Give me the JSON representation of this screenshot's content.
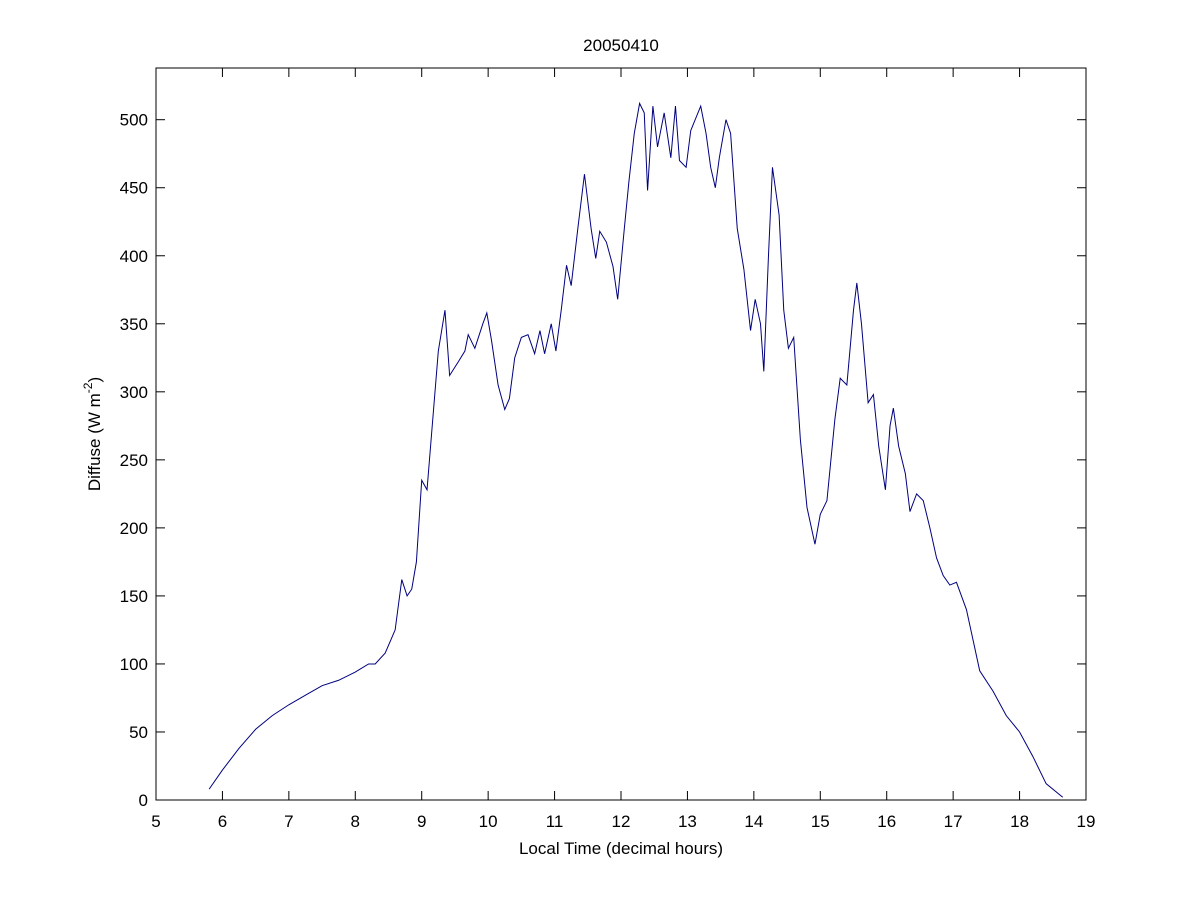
{
  "chart_data": {
    "type": "line",
    "title": "20050410",
    "xlabel": "Local Time (decimal hours)",
    "ylabel": {
      "text": "Diffuse (W m",
      "superscript": "-2",
      "suffix": ")"
    },
    "xlim": [
      5,
      19
    ],
    "xticks": [
      5,
      6,
      7,
      8,
      9,
      10,
      11,
      12,
      13,
      14,
      15,
      16,
      17,
      18,
      19
    ],
    "ylim": [
      0,
      538
    ],
    "yticks": [
      0,
      50,
      100,
      150,
      200,
      250,
      300,
      350,
      400,
      450,
      500
    ],
    "grid": false,
    "series": [
      {
        "name": "Diffuse",
        "color": "#00007f",
        "x": [
          5.8,
          6.0,
          6.25,
          6.5,
          6.75,
          7.0,
          7.25,
          7.5,
          7.75,
          8.0,
          8.2,
          8.3,
          8.45,
          8.6,
          8.7,
          8.78,
          8.85,
          8.92,
          9.0,
          9.08,
          9.15,
          9.25,
          9.35,
          9.42,
          9.55,
          9.65,
          9.7,
          9.8,
          9.92,
          9.98,
          10.05,
          10.15,
          10.25,
          10.32,
          10.4,
          10.5,
          10.6,
          10.7,
          10.78,
          10.85,
          10.95,
          11.02,
          11.1,
          11.18,
          11.25,
          11.35,
          11.45,
          11.55,
          11.62,
          11.68,
          11.78,
          11.88,
          11.95,
          12.05,
          12.12,
          12.2,
          12.28,
          12.35,
          12.4,
          12.48,
          12.55,
          12.65,
          12.75,
          12.82,
          12.88,
          12.98,
          13.05,
          13.2,
          13.28,
          13.35,
          13.42,
          13.48,
          13.58,
          13.65,
          13.75,
          13.85,
          13.95,
          14.02,
          14.1,
          14.15,
          14.22,
          14.28,
          14.38,
          14.45,
          14.52,
          14.6,
          14.7,
          14.8,
          14.92,
          15.0,
          15.1,
          15.22,
          15.3,
          15.4,
          15.5,
          15.55,
          15.62,
          15.72,
          15.8,
          15.88,
          15.98,
          16.05,
          16.1,
          16.18,
          16.28,
          16.35,
          16.45,
          16.55,
          16.65,
          16.75,
          16.85,
          16.95,
          17.05,
          17.2,
          17.4,
          17.6,
          17.8,
          18.0,
          18.2,
          18.4,
          18.65
        ],
        "values": [
          8,
          22,
          38,
          52,
          62,
          70,
          77,
          84,
          88,
          94,
          100,
          100,
          108,
          125,
          162,
          150,
          155,
          175,
          235,
          228,
          270,
          330,
          360,
          312,
          322,
          330,
          342,
          332,
          350,
          358,
          338,
          305,
          287,
          295,
          325,
          340,
          342,
          328,
          345,
          328,
          350,
          330,
          360,
          393,
          378,
          420,
          460,
          420,
          398,
          418,
          410,
          392,
          368,
          420,
          455,
          490,
          512,
          505,
          448,
          510,
          480,
          505,
          472,
          510,
          470,
          465,
          492,
          510,
          490,
          465,
          450,
          472,
          500,
          490,
          420,
          390,
          345,
          368,
          350,
          315,
          400,
          465,
          430,
          360,
          332,
          340,
          265,
          215,
          188,
          210,
          220,
          280,
          310,
          305,
          360,
          380,
          350,
          292,
          298,
          260,
          228,
          275,
          288,
          260,
          240,
          212,
          225,
          220,
          200,
          178,
          165,
          158,
          160,
          140,
          95,
          80,
          62,
          50,
          32,
          12,
          2
        ]
      }
    ]
  }
}
